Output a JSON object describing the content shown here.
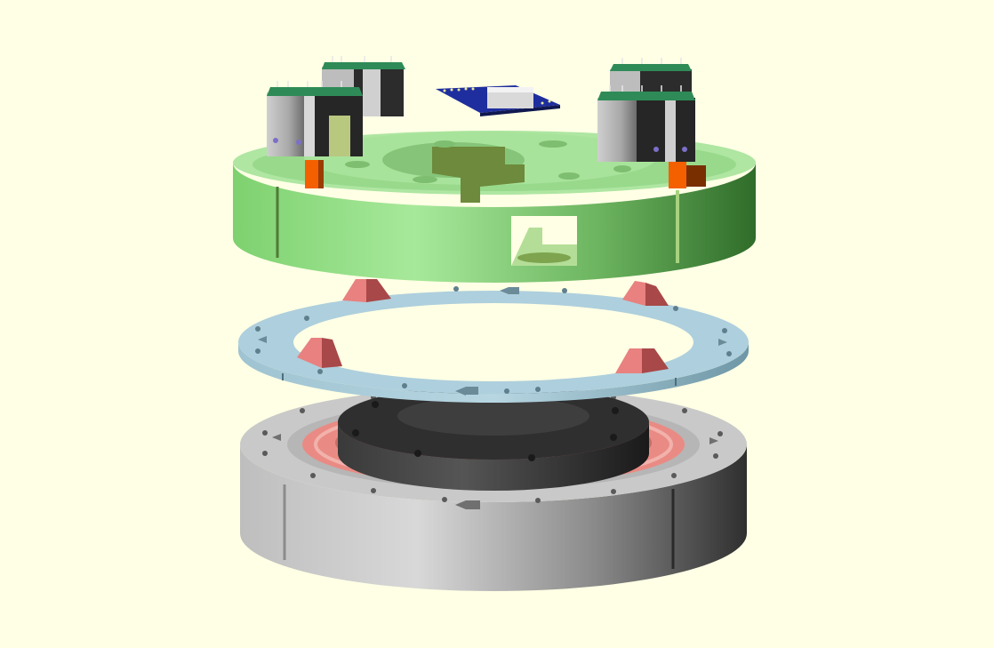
{
  "viewport": {
    "background": "#FFFFE5"
  },
  "colors": {
    "green_top": "#A8E29E",
    "green_side_light": "#9BE28F",
    "green_side_dark": "#2F6C2A",
    "green_inner": "#6E8A3C",
    "blue_ring": "#A9CBD9",
    "blue_ring_side": "#86AFC0",
    "gray_top": "#C8C8C8",
    "gray_side_light": "#D2D2D2",
    "gray_side_dark": "#3C3C3C",
    "salmon": "#E98B84",
    "black_hub": "#2E2E2E",
    "pcb_green": "#2E8B57",
    "pcb_blue": "#1F2E9E",
    "orange": "#F45F00",
    "red_clip": "#E67A7A"
  },
  "scene": {
    "parts": [
      "motor-driver-module",
      "controller-board",
      "top-housing",
      "clip",
      "spacer-ring",
      "inner-hub",
      "bearing-ring",
      "base-housing"
    ]
  }
}
